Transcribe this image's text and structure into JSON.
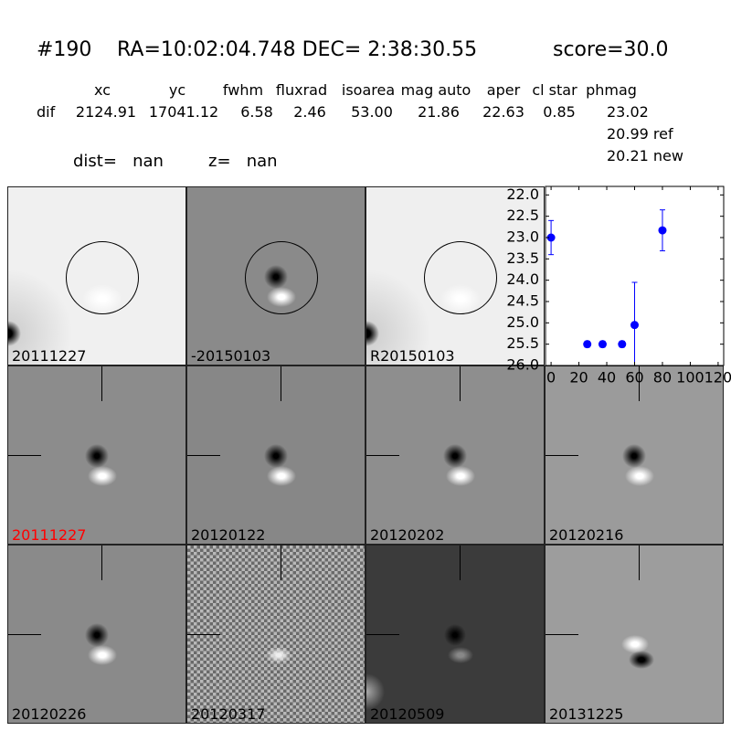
{
  "header": {
    "id": "#190",
    "coords": "RA=10:02:04.748 DEC= 2:38:30.55",
    "score": "score=30.0"
  },
  "table": {
    "columns": [
      "xc",
      "yc",
      "fwhm",
      "fluxrad",
      "isoarea",
      "mag auto",
      "aper",
      "cl star",
      "phmag"
    ],
    "rows": [
      [
        "dif",
        "2124.91",
        "17041.12",
        "6.58",
        "2.46",
        "53.00",
        "21.86",
        "22.63",
        "0.85",
        "23.02"
      ]
    ],
    "phmag_extra": [
      "20.99 ref",
      "20.21 new"
    ]
  },
  "dist": "dist=   nan",
  "z": "z=   nan",
  "panels": [
    {
      "label": "20111227"
    },
    {
      "label": "-20150103"
    },
    {
      "label": "R20150103"
    },
    {
      "label": "20111227",
      "label_color": "#ff0000"
    },
    {
      "label": "20120122"
    },
    {
      "label": "20120202"
    },
    {
      "label": "20120216"
    },
    {
      "label": "20120226"
    },
    {
      "label": "20120317"
    },
    {
      "label": "20120509"
    },
    {
      "label": "20131225"
    }
  ],
  "chart_data": {
    "type": "errorbar",
    "color": "#0000ff",
    "x": [
      0,
      26,
      37,
      51,
      60,
      80
    ],
    "values": [
      23.0,
      25.5,
      25.5,
      25.5,
      25.05,
      22.83
    ],
    "errors": [
      0.4,
      0.07,
      0.07,
      0.07,
      1.0,
      0.48
    ],
    "xlim": [
      -4,
      124
    ],
    "xticks": [
      0,
      20,
      40,
      60,
      80,
      100,
      120
    ],
    "ylim": [
      21.8,
      26.0
    ],
    "y_inverted": true,
    "yticks": [
      {
        "value": 22,
        "label": "22.0"
      },
      22.5,
      {
        "value": 23,
        "label": "23.0"
      },
      23.5,
      {
        "value": 24,
        "label": "24.0"
      },
      24.5,
      {
        "value": 25,
        "label": "25.0"
      },
      25.5,
      {
        "value": 26,
        "label": "26.0"
      }
    ]
  }
}
